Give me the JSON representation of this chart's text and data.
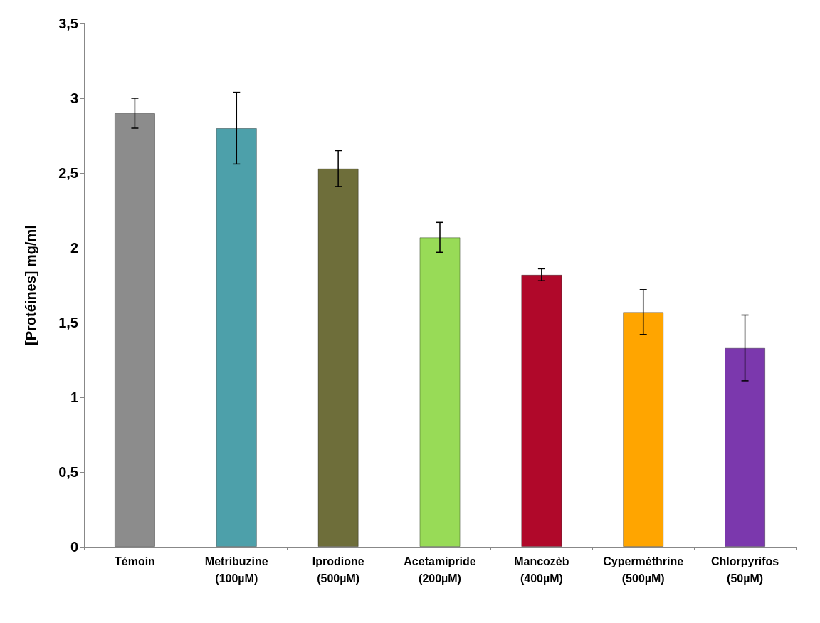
{
  "chart_data": {
    "type": "bar",
    "ylabel": "[Protéines] mg/ml",
    "categories": [
      "Témoin",
      "Metribuzine\n(100µM)",
      "Iprodione\n(500µM)",
      "Acetamipride\n(200µM)",
      "Mancozèb\n(400µM)",
      "Cyperméthrine\n(500µM)",
      "Chlorpyrifos\n(50µM)"
    ],
    "values": [
      2.9,
      2.8,
      2.53,
      2.07,
      1.82,
      1.57,
      1.33
    ],
    "errors": [
      0.1,
      0.24,
      0.12,
      0.1,
      0.04,
      0.15,
      0.22
    ],
    "colors": [
      "#8c8c8c",
      "#4da0aa",
      "#6e6e3a",
      "#98db57",
      "#b0082a",
      "#ffa500",
      "#7b38ad"
    ],
    "ylim": [
      0,
      3.5
    ],
    "yticks": [
      0,
      {
        "value": 0.5,
        "label": "0,5"
      },
      1,
      {
        "value": 1.5,
        "label": "1,5"
      },
      2,
      {
        "value": 2.5,
        "label": "2,5"
      },
      3,
      {
        "value": 3.5,
        "label": "3,5"
      }
    ],
    "grid": false
  }
}
